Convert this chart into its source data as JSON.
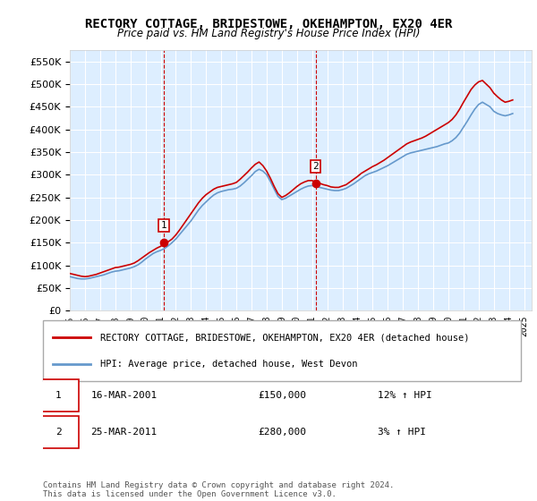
{
  "title": "RECTORY COTTAGE, BRIDESTOWE, OKEHAMPTON, EX20 4ER",
  "subtitle": "Price paid vs. HM Land Registry's House Price Index (HPI)",
  "legend_line1": "RECTORY COTTAGE, BRIDESTOWE, OKEHAMPTON, EX20 4ER (detached house)",
  "legend_line2": "HPI: Average price, detached house, West Devon",
  "annotation1": {
    "num": "1",
    "date": "16-MAR-2001",
    "price": "£150,000",
    "pct": "12% ↑ HPI"
  },
  "annotation2": {
    "num": "2",
    "date": "25-MAR-2011",
    "price": "£280,000",
    "pct": "3% ↑ HPI"
  },
  "footer": "Contains HM Land Registry data © Crown copyright and database right 2024.\nThis data is licensed under the Open Government Licence v3.0.",
  "hpi_color": "#6699cc",
  "price_color": "#cc0000",
  "vline_color": "#cc0000",
  "background_color": "#ddeeff",
  "ylim": [
    0,
    575000
  ],
  "yticks": [
    0,
    50000,
    100000,
    150000,
    200000,
    250000,
    300000,
    350000,
    400000,
    450000,
    500000,
    550000
  ],
  "xlim_start": 1995.0,
  "xlim_end": 2025.5,
  "sale1_x": 2001.21,
  "sale2_x": 2011.23,
  "hpi_years": [
    1995.0,
    1995.25,
    1995.5,
    1995.75,
    1996.0,
    1996.25,
    1996.5,
    1996.75,
    1997.0,
    1997.25,
    1997.5,
    1997.75,
    1998.0,
    1998.25,
    1998.5,
    1998.75,
    1999.0,
    1999.25,
    1999.5,
    1999.75,
    2000.0,
    2000.25,
    2000.5,
    2000.75,
    2001.0,
    2001.25,
    2001.5,
    2001.75,
    2002.0,
    2002.25,
    2002.5,
    2002.75,
    2003.0,
    2003.25,
    2003.5,
    2003.75,
    2004.0,
    2004.25,
    2004.5,
    2004.75,
    2005.0,
    2005.25,
    2005.5,
    2005.75,
    2006.0,
    2006.25,
    2006.5,
    2006.75,
    2007.0,
    2007.25,
    2007.5,
    2007.75,
    2008.0,
    2008.25,
    2008.5,
    2008.75,
    2009.0,
    2009.25,
    2009.5,
    2009.75,
    2010.0,
    2010.25,
    2010.5,
    2010.75,
    2011.0,
    2011.25,
    2011.5,
    2011.75,
    2012.0,
    2012.25,
    2012.5,
    2012.75,
    2013.0,
    2013.25,
    2013.5,
    2013.75,
    2014.0,
    2014.25,
    2014.5,
    2014.75,
    2015.0,
    2015.25,
    2015.5,
    2015.75,
    2016.0,
    2016.25,
    2016.5,
    2016.75,
    2017.0,
    2017.25,
    2017.5,
    2017.75,
    2018.0,
    2018.25,
    2018.5,
    2018.75,
    2019.0,
    2019.25,
    2019.5,
    2019.75,
    2020.0,
    2020.25,
    2020.5,
    2020.75,
    2021.0,
    2021.25,
    2021.5,
    2021.75,
    2022.0,
    2022.25,
    2022.5,
    2022.75,
    2023.0,
    2023.25,
    2023.5,
    2023.75,
    2024.0,
    2024.25
  ],
  "hpi_values": [
    75000,
    73000,
    71000,
    70000,
    70000,
    71000,
    73000,
    75000,
    77000,
    79000,
    82000,
    85000,
    87000,
    88000,
    90000,
    92000,
    94000,
    97000,
    101000,
    107000,
    114000,
    120000,
    126000,
    130000,
    133000,
    137000,
    143000,
    150000,
    158000,
    168000,
    178000,
    188000,
    198000,
    210000,
    222000,
    232000,
    240000,
    248000,
    255000,
    260000,
    263000,
    265000,
    267000,
    268000,
    270000,
    275000,
    282000,
    290000,
    298000,
    307000,
    312000,
    308000,
    300000,
    285000,
    268000,
    252000,
    245000,
    248000,
    253000,
    258000,
    263000,
    268000,
    272000,
    275000,
    276000,
    274000,
    272000,
    270000,
    268000,
    266000,
    265000,
    265000,
    267000,
    270000,
    275000,
    280000,
    286000,
    292000,
    298000,
    302000,
    305000,
    308000,
    312000,
    316000,
    320000,
    325000,
    330000,
    335000,
    340000,
    345000,
    348000,
    350000,
    352000,
    354000,
    356000,
    358000,
    360000,
    362000,
    365000,
    368000,
    370000,
    375000,
    382000,
    392000,
    405000,
    418000,
    432000,
    445000,
    455000,
    460000,
    455000,
    450000,
    440000,
    435000,
    432000,
    430000,
    432000,
    435000
  ],
  "price_years": [
    1995.0,
    1995.25,
    1995.5,
    1995.75,
    1996.0,
    1996.25,
    1996.5,
    1996.75,
    1997.0,
    1997.25,
    1997.5,
    1997.75,
    1998.0,
    1998.25,
    1998.5,
    1998.75,
    1999.0,
    1999.25,
    1999.5,
    1999.75,
    2000.0,
    2000.25,
    2000.5,
    2000.75,
    2001.0,
    2001.25,
    2001.5,
    2001.75,
    2002.0,
    2002.25,
    2002.5,
    2002.75,
    2003.0,
    2003.25,
    2003.5,
    2003.75,
    2004.0,
    2004.25,
    2004.5,
    2004.75,
    2005.0,
    2005.25,
    2005.5,
    2005.75,
    2006.0,
    2006.25,
    2006.5,
    2006.75,
    2007.0,
    2007.25,
    2007.5,
    2007.75,
    2008.0,
    2008.25,
    2008.5,
    2008.75,
    2009.0,
    2009.25,
    2009.5,
    2009.75,
    2010.0,
    2010.25,
    2010.5,
    2010.75,
    2011.0,
    2011.25,
    2011.5,
    2011.75,
    2012.0,
    2012.25,
    2012.5,
    2012.75,
    2013.0,
    2013.25,
    2013.5,
    2013.75,
    2014.0,
    2014.25,
    2014.5,
    2014.75,
    2015.0,
    2015.25,
    2015.5,
    2015.75,
    2016.0,
    2016.25,
    2016.5,
    2016.75,
    2017.0,
    2017.25,
    2017.5,
    2017.75,
    2018.0,
    2018.25,
    2018.5,
    2018.75,
    2019.0,
    2019.25,
    2019.5,
    2019.75,
    2020.0,
    2020.25,
    2020.5,
    2020.75,
    2021.0,
    2021.25,
    2021.5,
    2021.75,
    2022.0,
    2022.25,
    2022.5,
    2022.75,
    2023.0,
    2023.25,
    2023.5,
    2023.75,
    2024.0,
    2024.25
  ],
  "price_values": [
    82000,
    80000,
    78000,
    76000,
    75000,
    76000,
    78000,
    80000,
    83000,
    86000,
    89000,
    92000,
    95000,
    96000,
    98000,
    100000,
    102000,
    105000,
    110000,
    116000,
    122000,
    128000,
    133000,
    138000,
    142000,
    147000,
    152000,
    158000,
    167000,
    178000,
    190000,
    202000,
    214000,
    226000,
    238000,
    248000,
    256000,
    262000,
    268000,
    272000,
    274000,
    276000,
    278000,
    280000,
    283000,
    290000,
    298000,
    306000,
    315000,
    323000,
    328000,
    320000,
    308000,
    292000,
    274000,
    258000,
    250000,
    254000,
    260000,
    267000,
    274000,
    280000,
    284000,
    287000,
    287000,
    284000,
    281000,
    278000,
    276000,
    273000,
    272000,
    272000,
    275000,
    278000,
    284000,
    290000,
    296000,
    303000,
    308000,
    313000,
    318000,
    322000,
    327000,
    332000,
    338000,
    344000,
    350000,
    356000,
    362000,
    368000,
    372000,
    375000,
    378000,
    381000,
    385000,
    390000,
    395000,
    400000,
    405000,
    410000,
    415000,
    422000,
    432000,
    445000,
    460000,
    474000,
    488000,
    498000,
    505000,
    508000,
    500000,
    492000,
    480000,
    472000,
    465000,
    460000,
    462000,
    465000
  ],
  "xtick_years": [
    1995,
    1996,
    1997,
    1998,
    1999,
    2000,
    2001,
    2002,
    2003,
    2004,
    2005,
    2006,
    2007,
    2008,
    2009,
    2010,
    2011,
    2012,
    2013,
    2014,
    2015,
    2016,
    2017,
    2018,
    2019,
    2020,
    2021,
    2022,
    2023,
    2024,
    2025
  ]
}
